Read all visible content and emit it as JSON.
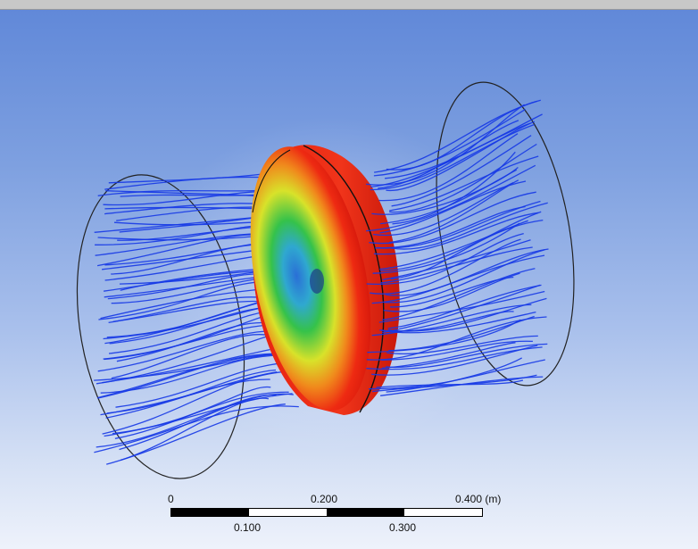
{
  "scene": {
    "colors": {
      "streamline": "#1638e6",
      "outline": "#222222",
      "disk_outer": "#ee2a12",
      "disk_mid": "#f0e020",
      "disk_inner": "#35c24a",
      "disk_core": "#2a8ad8"
    }
  },
  "scale": {
    "tick_top": [
      "0",
      "0.200",
      "0.400 (m)"
    ],
    "tick_bottom": [
      "0.100",
      "0.300"
    ]
  }
}
